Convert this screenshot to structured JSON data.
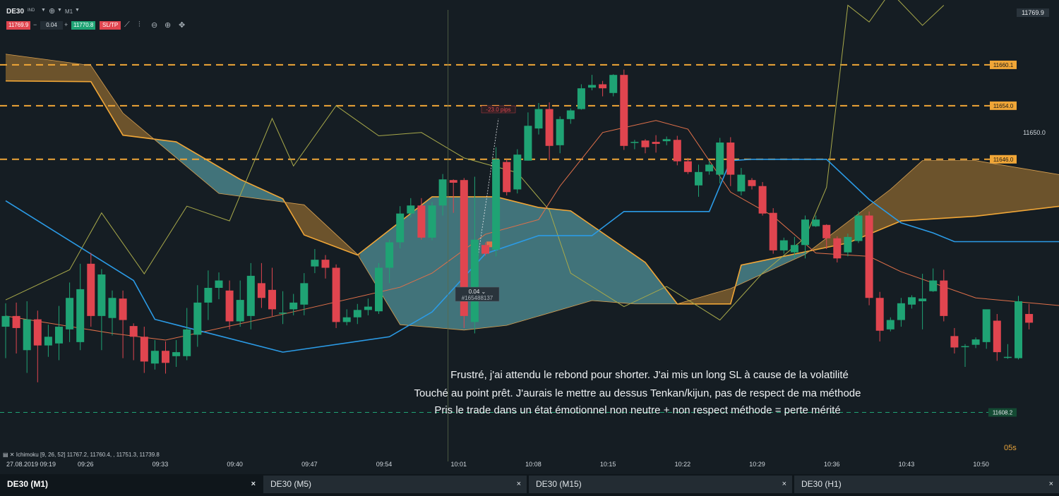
{
  "header": {
    "symbol": "DE30",
    "symbol_tag": "IND",
    "timeframe": "M1",
    "sell_price": "11769.9",
    "volume": "0.04",
    "buy_price": "11770.8",
    "sltp_label": "SL/TP",
    "minus": "−",
    "plus": "+"
  },
  "position": {
    "volume": "0.04",
    "ticket": "#165488137",
    "pips": "-23.0 pips"
  },
  "annotations": [
    "Frustré, j'ai attendu le rebond pour shorter. J'ai mis un long SL à cause de la volatilité",
    "Touché au point prêt. J'aurais le mettre au dessus Tenkan/kijun, pas de respect de ma méthode",
    "Pris le trade dans un état émotionnel non neutre + non respect méthode = perte mérité"
  ],
  "indicator_label": "Ichimoku [9, 26, 52] 11767.2, 11760.4, , 11751.3, 11739.8",
  "first_date": "27.08.2019 09:19",
  "countdown": "05s",
  "tabs": [
    {
      "label": "DE30 (M1)",
      "close": "×"
    },
    {
      "label": "DE30 (M5)",
      "close": "×"
    },
    {
      "label": "DE30 (M15)",
      "close": "×"
    },
    {
      "label": "DE30 (H1)",
      "close": "×"
    }
  ],
  "colors": {
    "up": "#1fa374",
    "down": "#e0454f",
    "kijun": "#2b9be6",
    "tenkan": "#e0704a",
    "chikou": "#a8a94a",
    "bear_cloud": "#8a6530",
    "bull_cloud": "#4c8a90",
    "span_a": "#f0a637",
    "level_line": "#f0a637",
    "price_line": "#1fa374"
  },
  "chart_data": {
    "type": "candlestick",
    "ylim": [
      11603.2,
      11668.1
    ],
    "x_tick_labels": [
      "09:26",
      "09:33",
      "09:40",
      "09:47",
      "09:54",
      "10:01",
      "10:08",
      "10:15",
      "10:22",
      "10:29",
      "10:36",
      "10:43",
      "10:50"
    ],
    "x_tick_index": [
      7.5,
      14.5,
      21.5,
      28.5,
      35.5,
      42.5,
      49.5,
      56.5,
      63.5,
      70.5,
      77.5,
      84.5,
      91.5
    ],
    "level_lines": [
      11660.1,
      11654.0,
      11646.0
    ],
    "price_labels": {
      "current": "11769.9",
      "axis": "11650.0",
      "low": "11608.2"
    },
    "axis_price": 11650.0,
    "low_price": 11608.2,
    "entry_index": 45.5,
    "entry_price": 11633.3,
    "candles": [
      [
        11621.0,
        11622.6,
        11616.3,
        11624.5
      ],
      [
        11622.6,
        11620.8,
        11617.0,
        11624.6
      ],
      [
        11617.5,
        11622.1,
        11614.1,
        11624.8
      ],
      [
        11622.1,
        11618.2,
        11612.7,
        11623.4
      ],
      [
        11618.2,
        11619.5,
        11616.5,
        11621.3
      ],
      [
        11618.5,
        11621.0,
        11616.0,
        11624.1
      ],
      [
        11620.6,
        11625.3,
        11618.7,
        11627.6
      ],
      [
        11618.7,
        11626.6,
        11617.5,
        11630.4
      ],
      [
        11630.4,
        11622.6,
        11621.0,
        11632.0
      ],
      [
        11622.6,
        11628.8,
        11617.5,
        11629.6
      ],
      [
        11622.3,
        11625.3,
        11619.7,
        11626.4
      ],
      [
        11625.2,
        11622.0,
        11616.3,
        11626.4
      ],
      [
        11621.1,
        11619.5,
        11616.0,
        11621.5
      ],
      [
        11619.5,
        11615.8,
        11614.1,
        11621.0
      ],
      [
        11615.5,
        11617.4,
        11614.6,
        11619.0
      ],
      [
        11617.4,
        11615.6,
        11614.0,
        11618.8
      ],
      [
        11616.6,
        11617.2,
        11615.0,
        11619.0
      ],
      [
        11616.6,
        11620.6,
        11616.0,
        11623.8
      ],
      [
        11619.8,
        11624.6,
        11618.0,
        11627.2
      ],
      [
        11624.6,
        11626.8,
        11622.0,
        11629.4
      ],
      [
        11626.8,
        11627.9,
        11625.1,
        11629.1
      ],
      [
        11626.4,
        11621.8,
        11620.6,
        11627.9
      ],
      [
        11621.8,
        11625.0,
        11621.0,
        11627.9
      ],
      [
        11622.6,
        11628.6,
        11620.6,
        11630.5
      ],
      [
        11627.5,
        11625.3,
        11623.8,
        11630.5
      ],
      [
        11626.5,
        11623.6,
        11622.6,
        11629.8
      ],
      [
        11623.1,
        11623.1,
        11621.4,
        11626.3
      ],
      [
        11623.6,
        11624.6,
        11622.7,
        11625.9
      ],
      [
        11624.3,
        11627.5,
        11622.7,
        11629.0
      ],
      [
        11630.0,
        11631.0,
        11629.0,
        11632.6
      ],
      [
        11631.0,
        11629.8,
        11628.2,
        11631.7
      ],
      [
        11629.8,
        11621.7,
        11620.8,
        11630.3
      ],
      [
        11621.7,
        11622.4,
        11621.2,
        11623.6
      ],
      [
        11622.4,
        11623.5,
        11621.4,
        11624.4
      ],
      [
        11623.5,
        11624.0,
        11622.7,
        11625.2
      ],
      [
        11623.3,
        11629.8,
        11622.9,
        11630.5
      ],
      [
        11629.8,
        11633.6,
        11627.5,
        11634.0
      ],
      [
        11633.6,
        11637.9,
        11632.7,
        11639.0
      ],
      [
        11637.9,
        11639.1,
        11637.3,
        11640.2
      ],
      [
        11639.1,
        11634.3,
        11634.0,
        11640.2
      ],
      [
        11634.3,
        11639.1,
        11633.9,
        11639.6
      ],
      [
        11639.1,
        11643.0,
        11637.6,
        11643.8
      ],
      [
        11642.9,
        11642.5,
        11638.0,
        11643.0
      ],
      [
        11642.9,
        11622.6,
        11620.8,
        11643.2
      ],
      [
        11621.7,
        11634.0,
        11620.0,
        11643.4
      ],
      [
        11633.2,
        11631.9,
        11631.6,
        11633.6
      ],
      [
        11632.5,
        11646.0,
        11631.5,
        11647.8
      ],
      [
        11645.6,
        11641.1,
        11640.6,
        11646.0
      ],
      [
        11641.5,
        11646.7,
        11640.9,
        11647.5
      ],
      [
        11645.8,
        11651.0,
        11645.8,
        11653.0
      ],
      [
        11650.6,
        11653.5,
        11649.7,
        11654.4
      ],
      [
        11653.5,
        11648.0,
        11645.9,
        11654.5
      ],
      [
        11648.1,
        11652.0,
        11646.9,
        11652.4
      ],
      [
        11652.0,
        11653.3,
        11651.3,
        11653.6
      ],
      [
        11653.5,
        11656.6,
        11653.4,
        11657.2
      ],
      [
        11656.7,
        11657.1,
        11656.3,
        11658.6
      ],
      [
        11657.2,
        11656.6,
        11655.4,
        11657.7
      ],
      [
        11655.9,
        11658.6,
        11655.4,
        11658.7
      ],
      [
        11658.6,
        11648.0,
        11647.4,
        11659.4
      ],
      [
        11648.6,
        11648.6,
        11647.5,
        11648.9
      ],
      [
        11648.8,
        11647.8,
        11646.9,
        11649.0
      ],
      [
        11648.6,
        11648.3,
        11647.0,
        11649.6
      ],
      [
        11648.7,
        11649.0,
        11648.1,
        11649.4
      ],
      [
        11648.9,
        11645.7,
        11645.1,
        11649.5
      ],
      [
        11645.7,
        11644.1,
        11643.8,
        11646.2
      ],
      [
        11642.1,
        11644.1,
        11640.4,
        11645.2
      ],
      [
        11644.2,
        11645.2,
        11643.7,
        11645.7
      ],
      [
        11643.7,
        11648.5,
        11642.4,
        11649.2
      ],
      [
        11648.5,
        11643.7,
        11642.0,
        11649.3
      ],
      [
        11641.2,
        11643.7,
        11640.6,
        11644.7
      ],
      [
        11642.9,
        11642.0,
        11641.5,
        11643.2
      ],
      [
        11642.0,
        11637.9,
        11637.6,
        11642.6
      ],
      [
        11638.0,
        11632.4,
        11631.9,
        11638.7
      ],
      [
        11632.4,
        11633.9,
        11631.9,
        11634.3
      ],
      [
        11632.1,
        11633.2,
        11631.2,
        11634.4
      ],
      [
        11633.2,
        11637.0,
        11631.2,
        11637.6
      ],
      [
        11636.0,
        11637.0,
        11635.9,
        11637.6
      ],
      [
        11636.2,
        11634.2,
        11632.6,
        11636.3
      ],
      [
        11634.2,
        11631.2,
        11630.6,
        11634.5
      ],
      [
        11632.1,
        11634.4,
        11631.5,
        11634.9
      ],
      [
        11633.8,
        11637.6,
        11633.5,
        11638.2
      ],
      [
        11637.6,
        11625.3,
        11624.2,
        11638.2
      ],
      [
        11625.3,
        11620.4,
        11618.8,
        11626.2
      ],
      [
        11620.6,
        11622.0,
        11620.3,
        11622.4
      ],
      [
        11622.0,
        11624.5,
        11621.0,
        11625.3
      ],
      [
        11624.3,
        11625.4,
        11623.7,
        11625.7
      ],
      [
        11624.8,
        11625.2,
        11620.6,
        11628.9
      ],
      [
        11626.3,
        11627.9,
        11626.2,
        11629.7
      ],
      [
        11627.9,
        11622.6,
        11621.8,
        11629.5
      ],
      [
        11619.6,
        11617.9,
        11617.0,
        11620.8
      ],
      [
        11618.1,
        11618.1,
        11615.0,
        11618.4
      ],
      [
        11618.3,
        11619.1,
        11617.8,
        11619.4
      ],
      [
        11618.7,
        11623.6,
        11617.7,
        11623.4
      ],
      [
        11621.9,
        11617.2,
        11615.9,
        11622.9
      ],
      [
        11616.5,
        11616.5,
        11616.2,
        11618.4
      ],
      [
        11616.3,
        11624.8,
        11616.1,
        11625.6
      ],
      [
        11622.9,
        11621.6,
        11620.6,
        11624.4
      ]
    ],
    "kijun": [
      [
        0,
        11639.8
      ],
      [
        12,
        11627.9
      ],
      [
        14,
        11622.1
      ],
      [
        26,
        11617.2
      ],
      [
        36,
        11619.5
      ],
      [
        40,
        11623.2
      ],
      [
        45,
        11631.9
      ],
      [
        50,
        11634.6
      ],
      [
        55,
        11634.6
      ],
      [
        58,
        11638.2
      ],
      [
        66,
        11638.2
      ],
      [
        68,
        11645.8
      ],
      [
        70,
        11646.0
      ],
      [
        77,
        11646.0
      ],
      [
        81,
        11640.0
      ],
      [
        84,
        11636.5
      ],
      [
        87,
        11635.0
      ],
      [
        89,
        11633.7
      ],
      [
        100,
        11633.7
      ]
    ],
    "tenkan": [
      [
        0,
        11622.6
      ],
      [
        10,
        11620.0
      ],
      [
        15,
        11619.0
      ],
      [
        25,
        11622.5
      ],
      [
        37,
        11626.9
      ],
      [
        40,
        11629.0
      ],
      [
        45,
        11634.8
      ],
      [
        50,
        11637.0
      ],
      [
        52,
        11642.0
      ],
      [
        56,
        11650.0
      ],
      [
        61,
        11651.8
      ],
      [
        64,
        11650.5
      ],
      [
        68,
        11641.1
      ],
      [
        72,
        11637.5
      ],
      [
        76,
        11632.0
      ],
      [
        81,
        11631.5
      ],
      [
        84,
        11629.2
      ],
      [
        91,
        11625.3
      ],
      [
        100,
        11624.0
      ]
    ],
    "span_a": [
      [
        0,
        11657.7
      ],
      [
        8,
        11657.6
      ],
      [
        11,
        11649.6
      ],
      [
        16,
        11648.6
      ],
      [
        22,
        11643.0
      ],
      [
        26,
        11640.1
      ],
      [
        28,
        11634.7
      ],
      [
        33,
        11631.7
      ],
      [
        40,
        11640.4
      ],
      [
        46,
        11640.4
      ],
      [
        50,
        11638.8
      ],
      [
        53,
        11638.3
      ],
      [
        60,
        11630.6
      ],
      [
        63,
        11624.4
      ],
      [
        68,
        11624.4
      ],
      [
        69,
        11630.2
      ],
      [
        79,
        11633.5
      ],
      [
        84,
        11636.8
      ],
      [
        91,
        11637.5
      ],
      [
        100,
        11639.2
      ]
    ],
    "span_b": [
      [
        0,
        11661.7
      ],
      [
        8,
        11660.0
      ],
      [
        11,
        11652.9
      ],
      [
        20,
        11640.9
      ],
      [
        28,
        11639.2
      ],
      [
        33,
        11631.8
      ],
      [
        37,
        11621.3
      ],
      [
        43,
        11620.5
      ],
      [
        47,
        11621.2
      ],
      [
        55,
        11624.9
      ],
      [
        59,
        11624.4
      ],
      [
        63,
        11624.4
      ],
      [
        68,
        11626.7
      ],
      [
        75,
        11631.8
      ],
      [
        83,
        11641.5
      ],
      [
        86,
        11645.8
      ],
      [
        91,
        11645.8
      ],
      [
        100,
        11643.4
      ]
    ],
    "chikou": [
      [
        0,
        11625.0
      ],
      [
        6,
        11629.5
      ],
      [
        9,
        11638.0
      ],
      [
        13,
        11628.9
      ],
      [
        17,
        11639.0
      ],
      [
        21,
        11636.8
      ],
      [
        25,
        11652.1
      ],
      [
        27,
        11645.0
      ],
      [
        31,
        11654.0
      ],
      [
        35,
        11649.5
      ],
      [
        39,
        11650.0
      ],
      [
        43,
        11646.2
      ],
      [
        48,
        11644.0
      ],
      [
        51,
        11638.4
      ],
      [
        53,
        11629.0
      ],
      [
        58,
        11624.0
      ],
      [
        62,
        11627.0
      ],
      [
        67,
        11622.0
      ],
      [
        71,
        11629.0
      ],
      [
        75,
        11634.3
      ],
      [
        77,
        11641.8
      ],
      [
        79,
        11669.0
      ],
      [
        81,
        11666.5
      ],
      [
        83,
        11671.0
      ],
      [
        86,
        11666.0
      ],
      [
        88,
        11669.0
      ]
    ]
  }
}
